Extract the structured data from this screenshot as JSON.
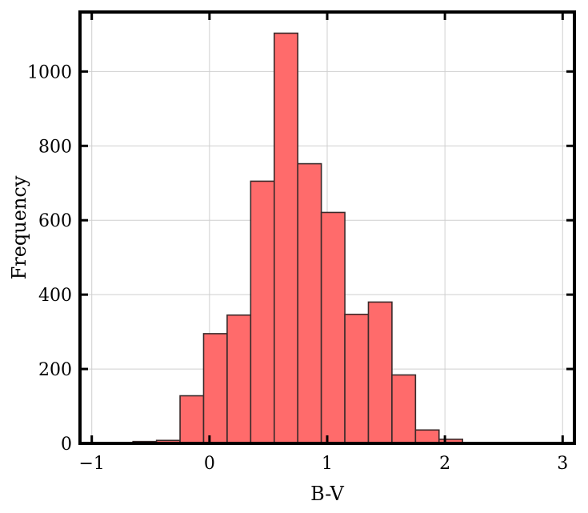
{
  "chart_data": {
    "type": "bar",
    "xlabel": "B-V",
    "ylabel": "Frequency",
    "xlim": [
      -1.1,
      3.1
    ],
    "ylim": [
      0,
      1160
    ],
    "grid": true,
    "bar_color": "#ff6b6b",
    "edge_color": "#3a2a2a",
    "xticks": [
      -1,
      0,
      1,
      2,
      3
    ],
    "xtick_labels": [
      "−1",
      "0",
      "1",
      "2",
      "3"
    ],
    "yticks": [
      0,
      200,
      400,
      600,
      800,
      1000
    ],
    "ytick_labels": [
      "0",
      "200",
      "400",
      "600",
      "800",
      "1000"
    ],
    "bins": [
      {
        "x0": -0.65,
        "x1": -0.45,
        "value": 5
      },
      {
        "x0": -0.45,
        "x1": -0.25,
        "value": 8
      },
      {
        "x0": -0.25,
        "x1": -0.05,
        "value": 128
      },
      {
        "x0": -0.05,
        "x1": 0.15,
        "value": 295
      },
      {
        "x0": 0.15,
        "x1": 0.35,
        "value": 345
      },
      {
        "x0": 0.35,
        "x1": 0.55,
        "value": 705
      },
      {
        "x0": 0.55,
        "x1": 0.75,
        "value": 1103
      },
      {
        "x0": 0.75,
        "x1": 0.95,
        "value": 752
      },
      {
        "x0": 0.95,
        "x1": 1.15,
        "value": 621
      },
      {
        "x0": 1.15,
        "x1": 1.35,
        "value": 347
      },
      {
        "x0": 1.35,
        "x1": 1.55,
        "value": 380
      },
      {
        "x0": 1.55,
        "x1": 1.75,
        "value": 184
      },
      {
        "x0": 1.75,
        "x1": 1.95,
        "value": 36
      },
      {
        "x0": 1.95,
        "x1": 2.15,
        "value": 11
      },
      {
        "x0": 2.15,
        "x1": 2.35,
        "value": 2
      }
    ]
  }
}
